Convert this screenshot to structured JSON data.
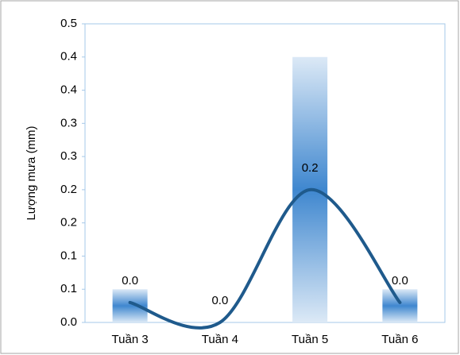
{
  "chart_data": {
    "type": "bar_line",
    "y_axis_label": "Lượng mưa (mm)",
    "categories": [
      "Tuần 3",
      "Tuần 4",
      "Tuần 5",
      "Tuần 6"
    ],
    "series": [
      {
        "type": "bar",
        "color": "#3f87cf",
        "values": [
          0.05,
          0,
          0.4,
          0.05
        ]
      },
      {
        "type": "line",
        "color": "#1f5a8c",
        "smooth": true,
        "values": [
          0.03,
          0,
          0.2,
          0.03
        ],
        "value_labels": [
          "0.0",
          "0.0",
          "0.2",
          "0.0"
        ]
      }
    ],
    "ylim": [
      0,
      0.45
    ],
    "yticks": [
      {
        "value": 0,
        "label": "0.0"
      },
      {
        "value": 0.05,
        "label": "0.1"
      },
      {
        "value": 0.1,
        "label": "0.1"
      },
      {
        "value": 0.15,
        "label": "0.2"
      },
      {
        "value": 0.2,
        "label": "0.2"
      },
      {
        "value": 0.25,
        "label": "0.3"
      },
      {
        "value": 0.3,
        "label": "0.3"
      },
      {
        "value": 0.35,
        "label": "0.4"
      },
      {
        "value": 0.4,
        "label": "0.4"
      },
      {
        "value": 0.45,
        "label": "0.5"
      }
    ],
    "grid": false
  }
}
